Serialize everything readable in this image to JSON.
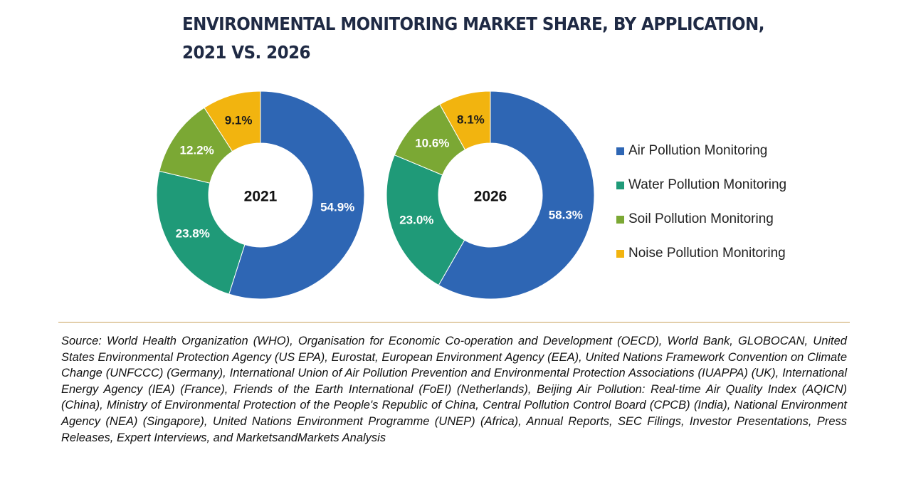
{
  "title": {
    "line1": "ENVIRONMENTAL MONITORING MARKET SHARE, BY APPLICATION,",
    "line2": "2021 VS. 2026"
  },
  "chart_data": [
    {
      "type": "pie",
      "subtype": "donut",
      "center_label": "2021",
      "categories": [
        "Air Pollution Monitoring",
        "Water Pollution Monitoring",
        "Soil Pollution Monitoring",
        "Noise Pollution Monitoring"
      ],
      "values": [
        54.9,
        23.8,
        12.2,
        9.1
      ],
      "labels": [
        "54.9%",
        "23.8%",
        "12.2%",
        "9.1%"
      ],
      "colors": [
        "#2e66b4",
        "#1f9a78",
        "#7ba834",
        "#f2b40f"
      ]
    },
    {
      "type": "pie",
      "subtype": "donut",
      "center_label": "2026",
      "categories": [
        "Air Pollution Monitoring",
        "Water Pollution Monitoring",
        "Soil Pollution Monitoring",
        "Noise Pollution Monitoring"
      ],
      "values": [
        58.3,
        23.0,
        10.6,
        8.1
      ],
      "labels": [
        "58.3%",
        "23.0%",
        "10.6%",
        "8.1%"
      ],
      "colors": [
        "#2e66b4",
        "#1f9a78",
        "#7ba834",
        "#f2b40f"
      ]
    }
  ],
  "legend": [
    {
      "label": "Air Pollution Monitoring",
      "color": "#2e66b4"
    },
    {
      "label": "Water Pollution Monitoring",
      "color": "#1f9a78"
    },
    {
      "label": "Soil Pollution Monitoring",
      "color": "#7ba834"
    },
    {
      "label": "Noise Pollution Monitoring",
      "color": "#f2b40f"
    }
  ],
  "source": "Source: World Health Organization (WHO), Organisation for Economic Co-operation and Development (OECD), World Bank, GLOBOCAN, United States Environmental Protection Agency (US EPA), Eurostat, European Environment Agency (EEA), United Nations Framework Convention on Climate Change (UNFCCC) (Germany), International Union of Air Pollution Prevention and Environmental Protection Associations (IUAPPA) (UK), International Energy Agency (IEA) (France), Friends of the Earth International (FoEI) (Netherlands), Beijing Air Pollution: Real-time Air Quality Index (AQICN) (China), Ministry of Environmental Protection of the People's Republic of China, Central Pollution Control Board (CPCB) (India), National Environment Agency (NEA) (Singapore), United Nations Environment Programme (UNEP) (Africa), Annual Reports, SEC Filings, Investor Presentations, Press Releases, Expert Interviews, and MarketsandMarkets Analysis"
}
